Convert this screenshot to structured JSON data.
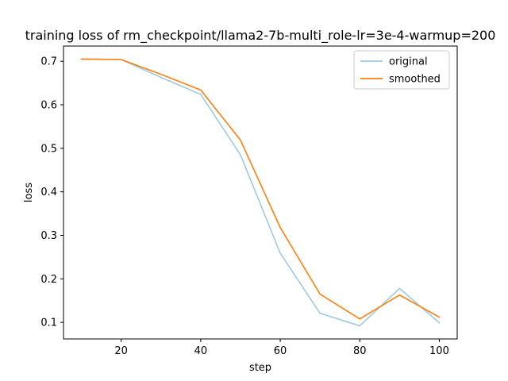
{
  "chart_data": {
    "type": "line",
    "title": "training loss of rm_checkpoint/llama2-7b-multi_role-lr=3e-4-warmup=200",
    "xlabel": "step",
    "ylabel": "loss",
    "x": [
      10,
      20,
      30,
      40,
      50,
      60,
      70,
      80,
      90,
      100
    ],
    "xlim": [
      5.5,
      104.5
    ],
    "ylim": [
      0.062,
      0.735
    ],
    "xticks": [
      20,
      40,
      60,
      80,
      100
    ],
    "yticks": [
      0.1,
      0.2,
      0.3,
      0.4,
      0.5,
      0.6,
      0.7
    ],
    "xtick_labels": [
      "20",
      "40",
      "60",
      "80",
      "100"
    ],
    "ytick_labels": [
      "0.1",
      "0.2",
      "0.3",
      "0.4",
      "0.5",
      "0.6",
      "0.7"
    ],
    "grid": false,
    "legend_position": "top-right",
    "series": [
      {
        "name": "original",
        "color": "#9ecae1",
        "values": [
          0.705,
          0.704,
          0.663,
          0.624,
          0.485,
          0.259,
          0.121,
          0.092,
          0.178,
          0.099
        ]
      },
      {
        "name": "smoothed",
        "color": "#ff7f0e",
        "values": [
          0.705,
          0.704,
          0.67,
          0.634,
          0.519,
          0.318,
          0.165,
          0.108,
          0.163,
          0.112
        ]
      }
    ]
  }
}
